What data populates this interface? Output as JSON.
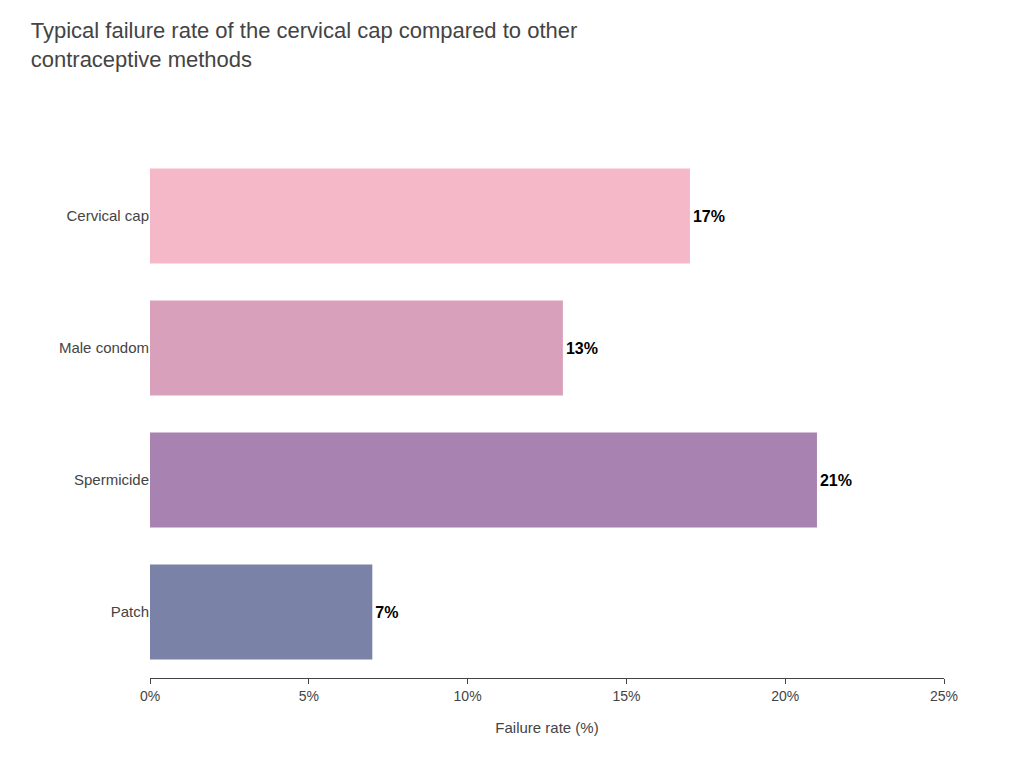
{
  "chart_data": {
    "type": "bar",
    "orientation": "horizontal",
    "title": "Typical failure rate of the cervical cap compared to other\ncontraceptive methods",
    "categories": [
      "Cervical cap",
      "Male condom",
      "Spermicide",
      "Patch"
    ],
    "values": [
      17,
      13,
      21,
      7
    ],
    "value_labels": [
      "17%",
      "13%",
      "21%",
      "7%"
    ],
    "data_labels": true,
    "colors": [
      "#F4B8C8",
      "#D9A0BC",
      "#A882B0",
      "#7A82A8"
    ],
    "x_label": "Failure rate (%)",
    "xlim": [
      0,
      25
    ],
    "xticks": [
      {
        "value": 0,
        "label": "0%"
      },
      {
        "value": 5,
        "label": "5%"
      },
      {
        "value": 10,
        "label": "10%"
      },
      {
        "value": 15,
        "label": "15%"
      },
      {
        "value": 20,
        "label": "20%"
      },
      {
        "value": 25,
        "label": "25%"
      }
    ],
    "grid": false
  }
}
